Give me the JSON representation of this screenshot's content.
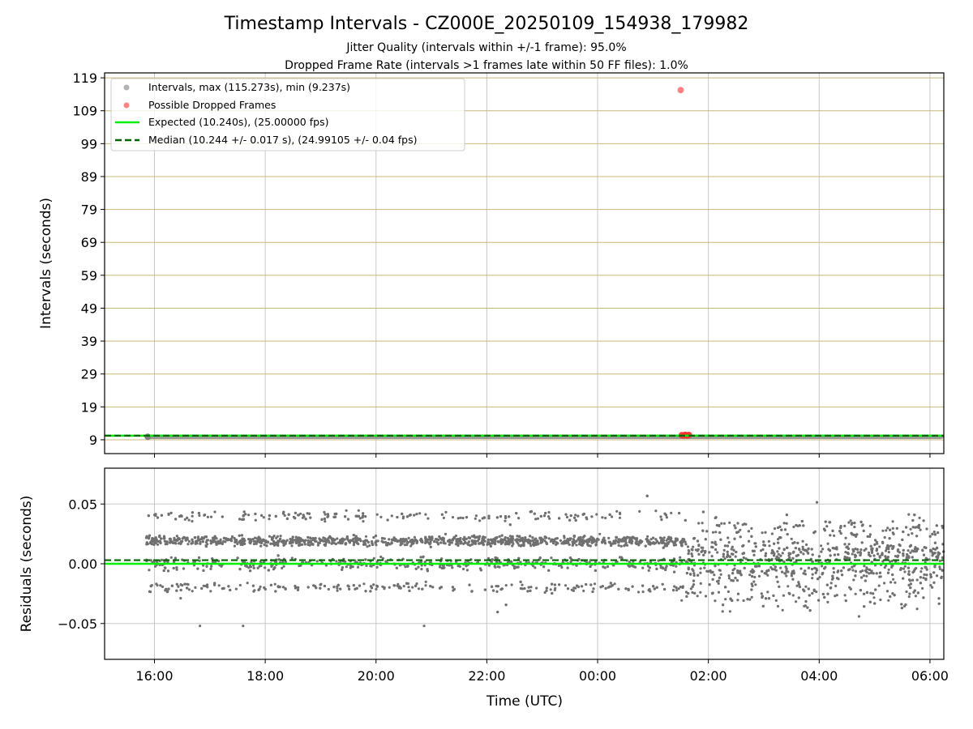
{
  "figure": {
    "title": "Timestamp Intervals - CZ000E_20250109_154938_179982",
    "subtitle_1": "Jitter Quality (intervals within +/-1 frame): 95.0%",
    "subtitle_2": "Dropped Frame Rate (intervals >1 frames late within 50 FF files): 1.0%"
  },
  "chart_data": [
    {
      "type": "scatter",
      "ylabel": "Intervals (seconds)",
      "xlabel": "",
      "xlim": [
        15.1,
        30.25
      ],
      "ylim": [
        4.8,
        120.5
      ],
      "yticks": [
        9,
        19,
        29,
        39,
        49,
        59,
        69,
        79,
        89,
        99,
        109,
        119
      ],
      "xticks": [
        16,
        18,
        20,
        22,
        24,
        26,
        28,
        30
      ],
      "grid": true,
      "legend_position": "upper-left",
      "legend": [
        "Intervals, max (115.273s), min (9.237s)",
        "Possible Dropped Frames",
        "Expected (10.240s), (25.00000 fps)",
        "Median (10.244 +/- 0.017 s), (24.99105 +/- 0.04 fps)"
      ],
      "series": [
        {
          "kind": "band",
          "x_range": [
            15.85,
            30.25
          ],
          "y_range": [
            9.237,
            10.6
          ],
          "color": "#808080"
        },
        {
          "kind": "points",
          "x": [
            25.5,
            25.52,
            25.55,
            25.58,
            25.6,
            25.62,
            25.65
          ],
          "y": [
            115.273,
            10.4,
            10.3,
            10.5,
            10.4,
            10.3,
            10.45
          ],
          "color": "#ff3030"
        },
        {
          "kind": "hline",
          "y": 10.24,
          "color": "#00ee00",
          "style": "solid"
        },
        {
          "kind": "hline",
          "y": 10.244,
          "color": "#006400",
          "style": "dashed"
        }
      ]
    },
    {
      "type": "scatter",
      "ylabel": "Residuals (seconds)",
      "xlabel": "Time (UTC)",
      "xlim": [
        15.1,
        30.25
      ],
      "ylim": [
        -0.08,
        0.08
      ],
      "yticks": [
        0.05,
        0.0,
        -0.05
      ],
      "xticks": [
        16,
        18,
        20,
        22,
        24,
        26,
        28,
        30
      ],
      "grid": true,
      "series": [
        {
          "kind": "residual-scatter",
          "x_range": [
            15.85,
            30.25
          ],
          "levels": [
            -0.02,
            0.0,
            0.02,
            0.04
          ],
          "spread": 0.004,
          "color": "#707070"
        },
        {
          "kind": "hline",
          "y": 0.0,
          "color": "#00ee00",
          "style": "solid"
        },
        {
          "kind": "hline",
          "y": 0.003,
          "color": "#006400",
          "style": "dashed"
        }
      ]
    }
  ],
  "tick_labels": {
    "x": [
      "16:00",
      "18:00",
      "20:00",
      "22:00",
      "00:00",
      "02:00",
      "04:00",
      "06:00"
    ],
    "y_top": [
      "9",
      "19",
      "29",
      "39",
      "49",
      "59",
      "69",
      "79",
      "89",
      "99",
      "109",
      "119"
    ],
    "y_bottom": [
      "0.05",
      "0.00",
      "−0.05"
    ]
  },
  "colors": {
    "grid_x": "#c8c8c8",
    "grid_y": "#c8b878",
    "intervals": "#808080",
    "dropped": "#ff3030",
    "expected": "#00ee00",
    "median": "#006400"
  }
}
